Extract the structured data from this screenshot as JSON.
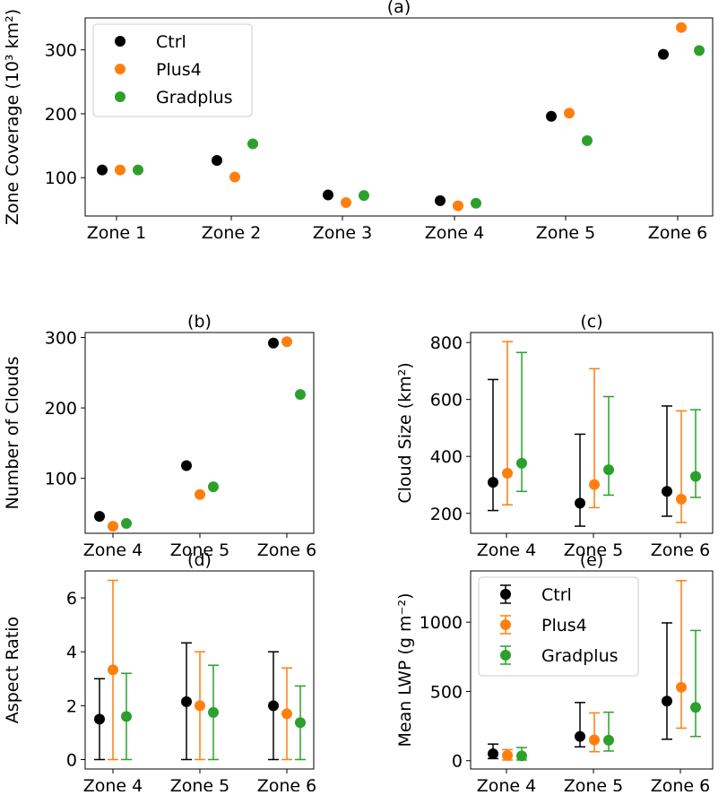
{
  "colors": {
    "Ctrl": "#000000",
    "Plus4": "#ff7f0e",
    "Gradplus": "#2ca02c"
  },
  "chart_data": [
    {
      "id": "a",
      "type": "scatter",
      "title": "(a)",
      "xlabel": "",
      "ylabel": "Zone Coverage (10³ km²)",
      "categories": [
        "Zone 1",
        "Zone 2",
        "Zone 3",
        "Zone 4",
        "Zone 5",
        "Zone 6"
      ],
      "ylim": [
        40,
        350
      ],
      "yticks": [
        100,
        200,
        300
      ],
      "legend": "top-left",
      "series": [
        {
          "name": "Ctrl",
          "values": [
            112,
            127,
            73,
            64,
            196,
            293
          ]
        },
        {
          "name": "Plus4",
          "values": [
            112,
            101,
            61,
            56,
            201,
            335
          ]
        },
        {
          "name": "Gradplus",
          "values": [
            112,
            153,
            72,
            60,
            158,
            299
          ]
        }
      ]
    },
    {
      "id": "b",
      "type": "scatter",
      "title": "(b)",
      "xlabel": "",
      "ylabel": "Number of Clouds",
      "categories": [
        "Zone 4",
        "Zone 5",
        "Zone 6"
      ],
      "ylim": [
        22,
        307
      ],
      "yticks": [
        100,
        200,
        300
      ],
      "legend": "none",
      "series": [
        {
          "name": "Ctrl",
          "values": [
            46,
            118,
            292
          ]
        },
        {
          "name": "Plus4",
          "values": [
            32,
            77,
            294
          ]
        },
        {
          "name": "Gradplus",
          "values": [
            36,
            88,
            219
          ]
        }
      ]
    },
    {
      "id": "c",
      "type": "scatter",
      "title": "(c)",
      "xlabel": "",
      "ylabel": "Cloud Size (km²)",
      "categories": [
        "Zone 4",
        "Zone 5",
        "Zone 6"
      ],
      "ylim": [
        130,
        835
      ],
      "yticks": [
        200,
        400,
        600,
        800
      ],
      "legend": "none",
      "series": [
        {
          "name": "Ctrl",
          "values": [
            309,
            236,
            277
          ],
          "low": [
            210,
            155,
            190
          ],
          "high": [
            670,
            478,
            577
          ]
        },
        {
          "name": "Plus4",
          "values": [
            341,
            301,
            250
          ],
          "low": [
            230,
            220,
            168
          ],
          "high": [
            803,
            708,
            560
          ]
        },
        {
          "name": "Gradplus",
          "values": [
            376,
            353,
            330
          ],
          "low": [
            277,
            264,
            256
          ],
          "high": [
            765,
            610,
            564
          ]
        }
      ]
    },
    {
      "id": "d",
      "type": "scatter",
      "title": "(d)",
      "xlabel": "",
      "ylabel": "Aspect Ratio",
      "categories": [
        "Zone 4",
        "Zone 5",
        "Zone 6"
      ],
      "ylim": [
        -0.35,
        7.0
      ],
      "yticks": [
        0,
        2,
        4,
        6
      ],
      "legend": "none",
      "series": [
        {
          "name": "Ctrl",
          "values": [
            1.5,
            2.15,
            2.0
          ],
          "low": [
            0,
            0,
            0
          ],
          "high": [
            3.0,
            4.33,
            4.0
          ]
        },
        {
          "name": "Plus4",
          "values": [
            3.33,
            2.0,
            1.7
          ],
          "low": [
            0,
            0,
            0
          ],
          "high": [
            6.65,
            4.0,
            3.4
          ]
        },
        {
          "name": "Gradplus",
          "values": [
            1.6,
            1.75,
            1.37
          ],
          "low": [
            0,
            0,
            0
          ],
          "high": [
            3.2,
            3.5,
            2.73
          ]
        }
      ]
    },
    {
      "id": "e",
      "type": "scatter",
      "title": "(e)",
      "xlabel": "",
      "ylabel": "Mean LWP (g m⁻²)",
      "categories": [
        "Zone 4",
        "Zone 5",
        "Zone 6"
      ],
      "ylim": [
        -60,
        1370
      ],
      "yticks": [
        0,
        500,
        1000
      ],
      "legend": "top-left",
      "series": [
        {
          "name": "Ctrl",
          "values": [
            50,
            175,
            430
          ],
          "low": [
            15,
            100,
            155
          ],
          "high": [
            120,
            420,
            995
          ]
        },
        {
          "name": "Plus4",
          "values": [
            38,
            150,
            530
          ],
          "low": [
            5,
            65,
            235
          ],
          "high": [
            80,
            345,
            1300
          ]
        },
        {
          "name": "Gradplus",
          "values": [
            35,
            148,
            385
          ],
          "low": [
            5,
            70,
            175
          ],
          "high": [
            95,
            350,
            940
          ]
        }
      ]
    }
  ]
}
